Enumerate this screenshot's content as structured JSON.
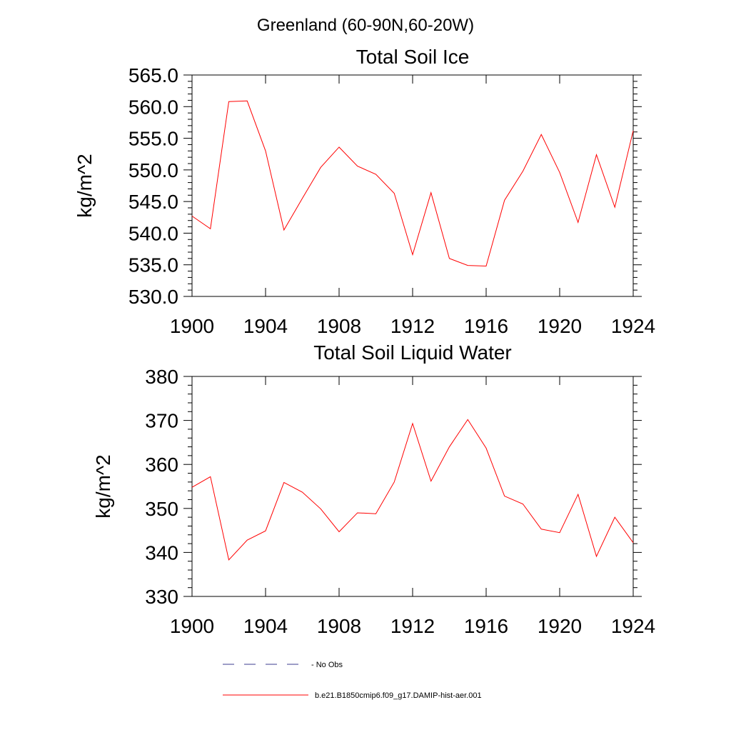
{
  "page": {
    "title": "Greenland (60-90N,60-20W)"
  },
  "legend": [
    {
      "label": "No Obs",
      "color": "#3b3b8f",
      "dashed": true
    },
    {
      "label": "b.e21.B1850cmip6.f09_g17.DAMIP-hist-aer.001",
      "color": "#ff0000",
      "dashed": false
    }
  ],
  "chart_data": [
    {
      "type": "line",
      "title": "Total Soil Ice",
      "ylabel": "kg/m^2",
      "xlabel": "",
      "xlim": [
        1900,
        1924
      ],
      "ylim": [
        530,
        565
      ],
      "x_ticks": [
        1900,
        1904,
        1908,
        1912,
        1916,
        1920,
        1924
      ],
      "x_tick_labels": [
        "1900",
        "1904",
        "1908",
        "1912",
        "1916",
        "1920",
        "1924"
      ],
      "y_ticks": [
        530,
        535,
        540,
        545,
        550,
        555,
        560,
        565
      ],
      "y_tick_labels": [
        "530.0",
        "535.0",
        "540.0",
        "545.0",
        "550.0",
        "555.0",
        "560.0",
        "565.0"
      ],
      "grid": false,
      "series": [
        {
          "color": "#ff0000",
          "x": [
            1900,
            1901,
            1902,
            1903,
            1904,
            1905,
            1906,
            1907,
            1908,
            1909,
            1910,
            1911,
            1912,
            1913,
            1914,
            1915,
            1916,
            1917,
            1918,
            1919,
            1920,
            1921,
            1922,
            1923,
            1924
          ],
          "values": [
            542.7,
            540.7,
            560.8,
            560.9,
            553.0,
            540.5,
            545.5,
            550.4,
            553.6,
            550.6,
            549.3,
            546.3,
            536.6,
            546.4,
            536.0,
            534.9,
            534.8,
            545.2,
            549.8,
            555.6,
            549.6,
            541.7,
            552.4,
            544.1,
            556.2
          ]
        }
      ]
    },
    {
      "type": "line",
      "title": "Total Soil Liquid Water",
      "ylabel": "kg/m^2",
      "xlabel": "",
      "xlim": [
        1900,
        1924
      ],
      "ylim": [
        330,
        380
      ],
      "x_ticks": [
        1900,
        1904,
        1908,
        1912,
        1916,
        1920,
        1924
      ],
      "x_tick_labels": [
        "1900",
        "1904",
        "1908",
        "1912",
        "1916",
        "1920",
        "1924"
      ],
      "y_ticks": [
        330,
        340,
        350,
        360,
        370,
        380
      ],
      "y_tick_labels": [
        "330",
        "340",
        "350",
        "360",
        "370",
        "380"
      ],
      "grid": false,
      "series": [
        {
          "color": "#ff0000",
          "x": [
            1900,
            1901,
            1902,
            1903,
            1904,
            1905,
            1906,
            1907,
            1908,
            1909,
            1910,
            1911,
            1912,
            1913,
            1914,
            1915,
            1916,
            1917,
            1918,
            1919,
            1920,
            1921,
            1922,
            1923,
            1924
          ],
          "values": [
            354.8,
            357.2,
            338.3,
            342.8,
            344.9,
            355.9,
            353.7,
            349.9,
            344.7,
            349.0,
            348.8,
            356.0,
            369.3,
            356.2,
            364.0,
            370.2,
            363.7,
            352.8,
            351.0,
            345.3,
            344.5,
            353.2,
            339.1,
            348.0,
            342.2
          ]
        }
      ]
    }
  ]
}
